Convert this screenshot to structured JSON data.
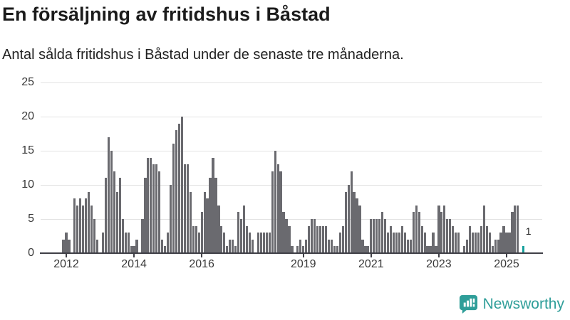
{
  "header": {
    "title": "En försäljning av fritidshus i Båstad",
    "subtitle": "Antal sålda fritidshus i Båstad under de senaste tre månaderna."
  },
  "footer": {
    "brand": "Newsworthy",
    "logo_icon": "newsworthy-bar-chart-bubble-icon"
  },
  "colors": {
    "bar": "#6a6a6f",
    "highlight": "#17a19d",
    "grid": "#e2e2e2",
    "axis": "#3f3f46",
    "text": "#1b1b1b",
    "brand": "#2f9e99"
  },
  "chart_data": {
    "type": "bar",
    "title": "En försäljning av fritidshus i Båstad",
    "subtitle": "Antal sålda fritidshus i Båstad under de senaste tre månaderna.",
    "granularity": "monthly rolling 3-month sum",
    "x_start": "2011-12",
    "x_end": "2025-07",
    "ylim": [
      0,
      25
    ],
    "yticks": [
      0,
      5,
      10,
      15,
      20,
      25
    ],
    "grid": true,
    "legend": false,
    "xticks": [
      {
        "label": "2012",
        "index": 1
      },
      {
        "label": "2014",
        "index": 25
      },
      {
        "label": "2016",
        "index": 49
      },
      {
        "label": "2019",
        "index": 85
      },
      {
        "label": "2021",
        "index": 109
      },
      {
        "label": "2023",
        "index": 133
      },
      {
        "label": "2025",
        "index": 157
      }
    ],
    "values": [
      2,
      3,
      2,
      0,
      8,
      7,
      8,
      7,
      8,
      9,
      7,
      5,
      2,
      0,
      3,
      11,
      17,
      15,
      12,
      9,
      11,
      5,
      3,
      3,
      1,
      1,
      2,
      0,
      5,
      11,
      14,
      14,
      13,
      13,
      12,
      2,
      1,
      3,
      10,
      16,
      18,
      19,
      20,
      13,
      13,
      9,
      4,
      4,
      3,
      6,
      9,
      8,
      11,
      14,
      11,
      7,
      4,
      3,
      1,
      2,
      2,
      1,
      6,
      5,
      7,
      4,
      3,
      2,
      0,
      3,
      3,
      3,
      3,
      3,
      12,
      15,
      13,
      12,
      6,
      5,
      4,
      1,
      0,
      1,
      2,
      1,
      2,
      4,
      5,
      5,
      4,
      4,
      4,
      4,
      2,
      2,
      1,
      1,
      3,
      4,
      9,
      10,
      12,
      9,
      8,
      7,
      2,
      1,
      1,
      5,
      5,
      5,
      5,
      6,
      5,
      3,
      4,
      3,
      3,
      3,
      4,
      3,
      2,
      2,
      6,
      7,
      6,
      4,
      3,
      1,
      1,
      3,
      1,
      7,
      6,
      7,
      5,
      5,
      4,
      3,
      3,
      0,
      1,
      2,
      4,
      3,
      3,
      3,
      4,
      7,
      4,
      3,
      1,
      2,
      2,
      3,
      4,
      3,
      3,
      6,
      7,
      7,
      0,
      1
    ],
    "highlight": {
      "index": 163,
      "value": 1,
      "label": "1"
    }
  }
}
